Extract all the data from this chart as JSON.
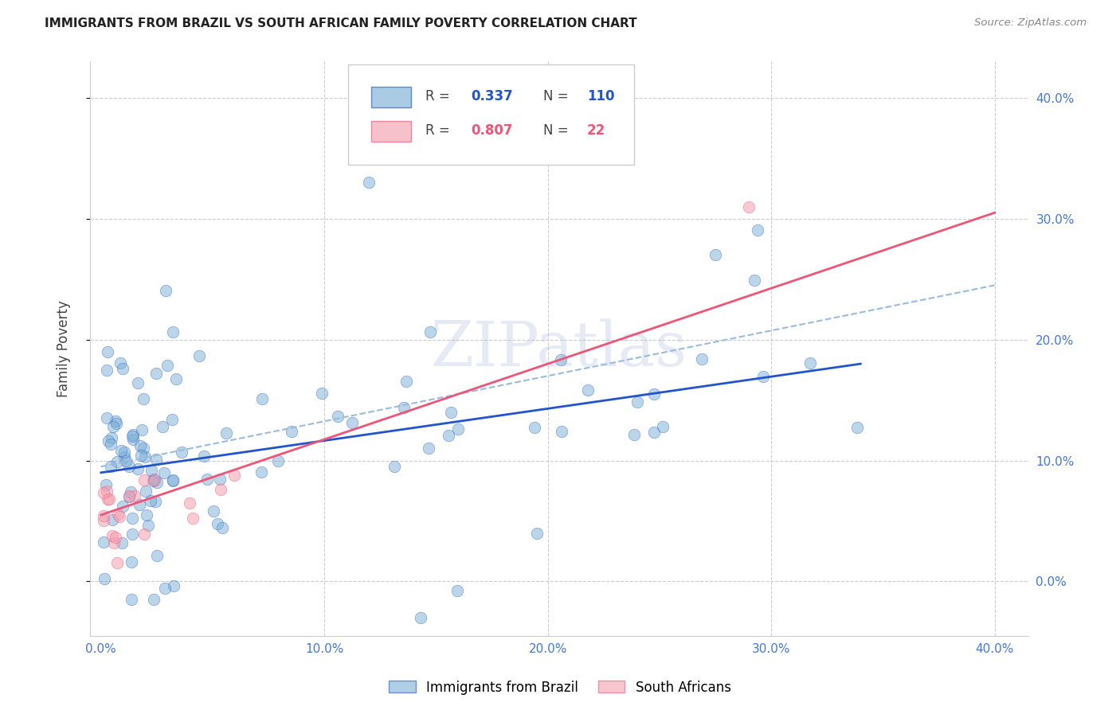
{
  "title": "IMMIGRANTS FROM BRAZIL VS SOUTH AFRICAN FAMILY POVERTY CORRELATION CHART",
  "source": "Source: ZipAtlas.com",
  "ylabel": "Family Poverty",
  "legend_label1": "Immigrants from Brazil",
  "legend_label2": "South Africans",
  "R1": 0.337,
  "N1": 110,
  "R2": 0.807,
  "N2": 22,
  "xlim": [
    -0.005,
    0.415
  ],
  "ylim": [
    -0.045,
    0.43
  ],
  "color_brazil": "#7BAFD4",
  "color_sa": "#F4A0B0",
  "trendline_brazil": "#2255CC",
  "trendline_sa": "#EE5577",
  "dashed_color": "#99BBDD",
  "grid_color": "#CCCCCC",
  "tick_color": "#4477DD",
  "title_color": "#222222",
  "watermark_color": "#AABBDD",
  "brazil_trend": [
    0.0,
    0.34,
    0.09,
    0.18
  ],
  "sa_trend": [
    0.0,
    0.4,
    0.055,
    0.305
  ],
  "dashed_trend": [
    0.0,
    0.4,
    0.095,
    0.245
  ],
  "yticks": [
    0.0,
    0.1,
    0.2,
    0.3,
    0.4
  ],
  "xticks": [
    0.0,
    0.1,
    0.2,
    0.3,
    0.4
  ]
}
